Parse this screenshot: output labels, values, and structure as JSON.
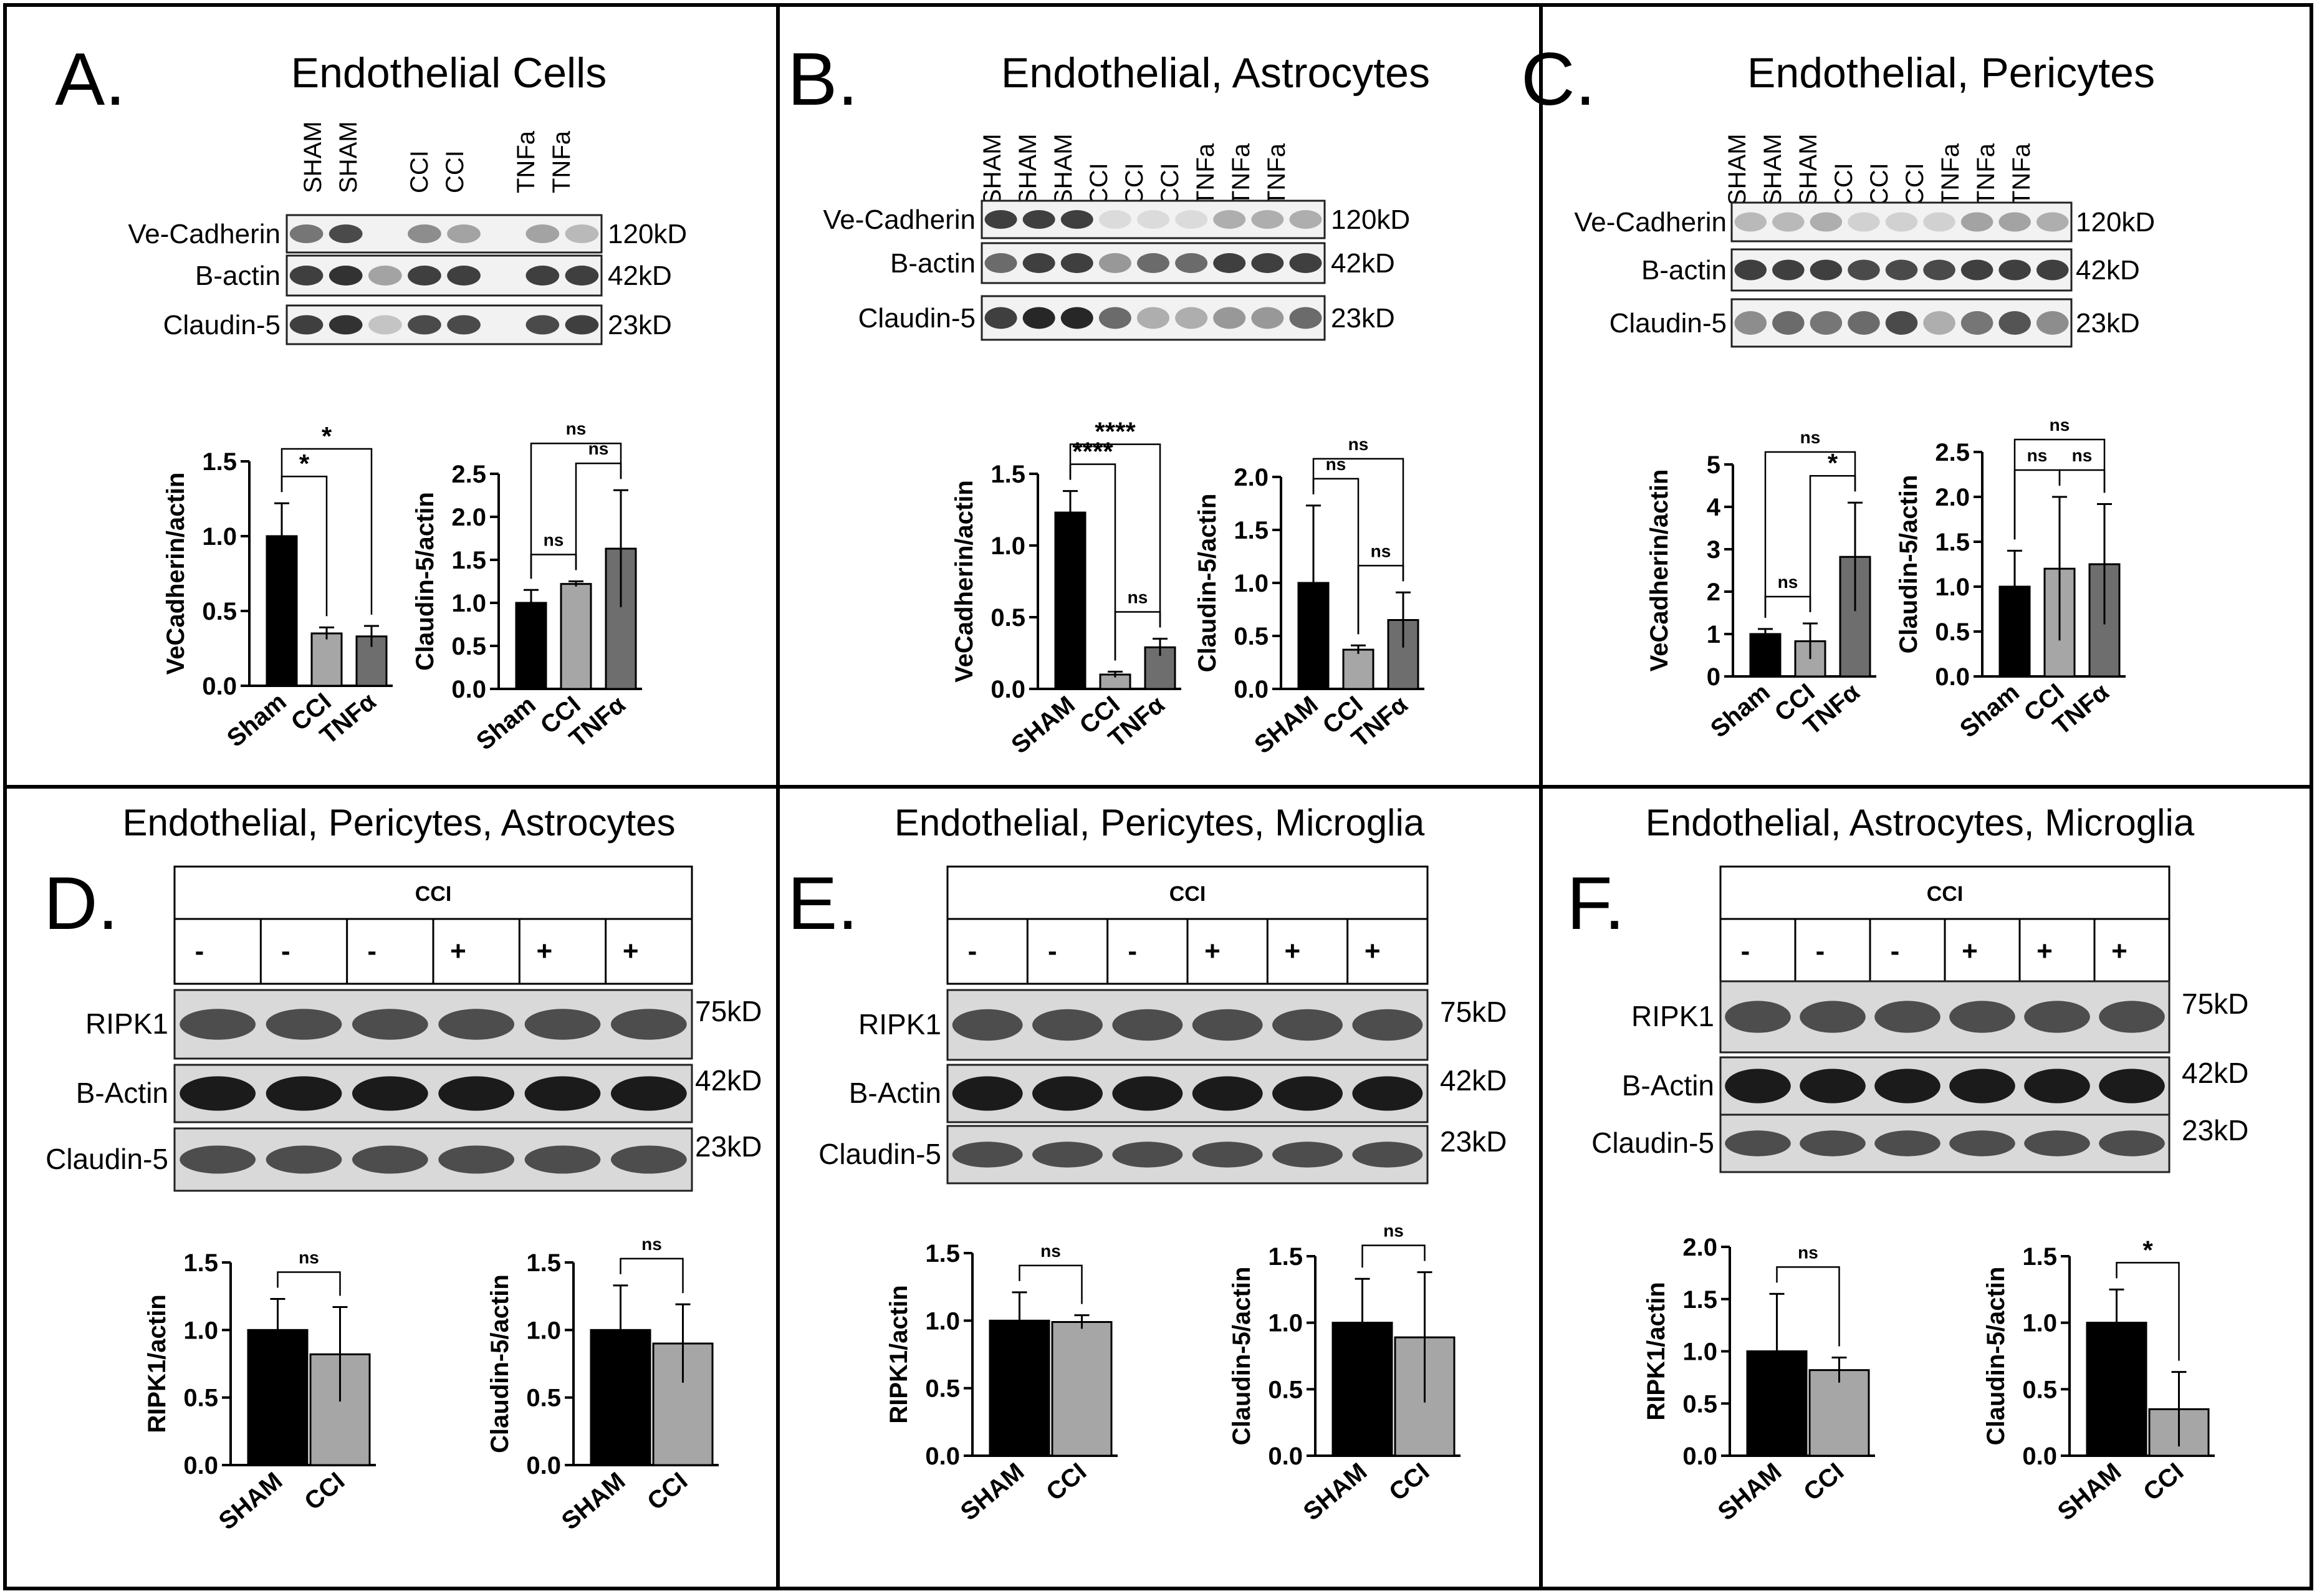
{
  "colors": {
    "sham": "#000000",
    "cci": "#a6a6a6",
    "tnf": "#6e6e6e",
    "panel_border": "#000000"
  },
  "panels": [
    {
      "letter": "A.",
      "title": "Endothelial Cells",
      "kind": "top",
      "lanes": [
        "SHAM",
        "SHAM",
        "",
        "CCI",
        "CCI",
        "",
        "TNFa",
        "TNFa"
      ],
      "bands": [
        {
          "label": "Ve-Cadherin",
          "size": "120kD"
        },
        {
          "label": "B-actin",
          "size": "42kD"
        },
        {
          "label": "Claudin-5",
          "size": "23kD"
        }
      ]
    },
    {
      "letter": "B.",
      "title": "Endothelial, Astrocytes",
      "kind": "top",
      "lanes": [
        "SHAM",
        "SHAM",
        "SHAM",
        "CCI",
        "CCI",
        "CCI",
        "TNFa",
        "TNFa",
        "TNFa"
      ],
      "bands": [
        {
          "label": "Ve-Cadherin",
          "size": "120kD"
        },
        {
          "label": "B-actin",
          "size": "42kD"
        },
        {
          "label": "Claudin-5",
          "size": "23kD"
        }
      ]
    },
    {
      "letter": "C.",
      "title": "Endothelial, Pericytes",
      "kind": "top",
      "lanes": [
        "SHAM",
        "SHAM",
        "SHAM",
        "CCI",
        "CCI",
        "CCI",
        "TNFa",
        "TNFa",
        "TNFa"
      ],
      "bands": [
        {
          "label": "Ve-Cadherin",
          "size": "120kD"
        },
        {
          "label": "B-actin",
          "size": "42kD"
        },
        {
          "label": "Claudin-5",
          "size": "23kD"
        }
      ]
    },
    {
      "letter": "D.",
      "title": "Endothelial, Pericytes, Astrocytes",
      "kind": "bottom",
      "treatment": "CCI",
      "signs": [
        "-",
        "-",
        "-",
        "+",
        "+",
        "+"
      ],
      "bands": [
        {
          "label": "RIPK1",
          "size": "75kD"
        },
        {
          "label": "B-Actin",
          "size": "42kD"
        },
        {
          "label": "Claudin-5",
          "size": "23kD"
        }
      ]
    },
    {
      "letter": "E.",
      "title": "Endothelial, Pericytes, Microglia",
      "kind": "bottom",
      "treatment": "CCI",
      "signs": [
        "-",
        "-",
        "-",
        "+",
        "+",
        "+"
      ],
      "bands": [
        {
          "label": "RIPK1",
          "size": "75kD"
        },
        {
          "label": "B-Actin",
          "size": "42kD"
        },
        {
          "label": "Claudin-5",
          "size": "23kD"
        }
      ]
    },
    {
      "letter": "F.",
      "title": "Endothelial, Astrocytes, Microglia",
      "kind": "bottom",
      "treatment": "CCI",
      "signs": [
        "-",
        "-",
        "-",
        "+",
        "+",
        "+"
      ],
      "bands": [
        {
          "label": "RIPK1",
          "size": "75kD"
        },
        {
          "label": "B-Actin",
          "size": "42kD"
        },
        {
          "label": "Claudin-5",
          "size": "23kD"
        }
      ]
    }
  ],
  "chart_data": [
    {
      "panel": "A",
      "type": "bar",
      "ylabel": "VeCadherin/actin",
      "categories": [
        "Sham",
        "CCI",
        "TNFα"
      ],
      "values": [
        1.0,
        0.35,
        0.33
      ],
      "errors": [
        0.22,
        0.04,
        0.07
      ],
      "ylim": [
        0,
        1.5
      ],
      "yticks": [
        "0.0",
        "0.5",
        "1.0",
        "1.5"
      ],
      "significance": [
        {
          "from": 0,
          "to": 2,
          "label": "*"
        },
        {
          "from": 0,
          "to": 1,
          "label": "*"
        }
      ]
    },
    {
      "panel": "A",
      "type": "bar",
      "ylabel": "Claudin-5/actin",
      "categories": [
        "Sham",
        "CCI",
        "TNFα"
      ],
      "values": [
        1.0,
        1.22,
        1.63
      ],
      "errors": [
        0.15,
        0.03,
        0.68
      ],
      "ylim": [
        0,
        2.5
      ],
      "yticks": [
        "0.0",
        "0.5",
        "1.0",
        "1.5",
        "2.0",
        "2.5"
      ],
      "significance": [
        {
          "from": 0,
          "to": 2,
          "label": "ns"
        },
        {
          "from": 0,
          "to": 1,
          "label": "ns"
        },
        {
          "from": 1,
          "to": 2,
          "label": "ns"
        }
      ]
    },
    {
      "panel": "B",
      "type": "bar",
      "ylabel": "VeCadherin/actin",
      "categories": [
        "SHAM",
        "CCI",
        "TNFα"
      ],
      "values": [
        1.23,
        0.1,
        0.29
      ],
      "errors": [
        0.15,
        0.02,
        0.06
      ],
      "ylim": [
        0,
        1.5
      ],
      "yticks": [
        "0.0",
        "0.5",
        "1.0",
        "1.5"
      ],
      "significance": [
        {
          "from": 0,
          "to": 2,
          "label": "****"
        },
        {
          "from": 1,
          "to": 2,
          "label": "ns"
        },
        {
          "from": 0,
          "to": 1,
          "label": "****"
        }
      ]
    },
    {
      "panel": "B",
      "type": "bar",
      "ylabel": "Claudin-5/actin",
      "categories": [
        "SHAM",
        "CCI",
        "TNFα"
      ],
      "values": [
        1.0,
        0.37,
        0.65
      ],
      "errors": [
        0.73,
        0.04,
        0.26
      ],
      "ylim": [
        0,
        2.0
      ],
      "yticks": [
        "0.0",
        "0.5",
        "1.0",
        "1.5",
        "2.0"
      ],
      "significance": [
        {
          "from": 0,
          "to": 2,
          "label": "ns"
        },
        {
          "from": 0,
          "to": 1,
          "label": "ns"
        },
        {
          "from": 1,
          "to": 2,
          "label": "ns"
        }
      ]
    },
    {
      "panel": "C",
      "type": "bar",
      "ylabel": "VeCadherin/actin",
      "categories": [
        "Sham",
        "CCI",
        "TNFα"
      ],
      "values": [
        1.0,
        0.83,
        2.82
      ],
      "errors": [
        0.12,
        0.42,
        1.28
      ],
      "ylim": [
        0,
        5
      ],
      "yticks": [
        "0",
        "1",
        "2",
        "3",
        "4",
        "5"
      ],
      "significance": [
        {
          "from": 0,
          "to": 2,
          "label": "ns"
        },
        {
          "from": 0,
          "to": 1,
          "label": "ns"
        },
        {
          "from": 1,
          "to": 2,
          "label": "*"
        }
      ]
    },
    {
      "panel": "C",
      "type": "bar",
      "ylabel": "Claudin-5/actin",
      "categories": [
        "Sham",
        "CCI",
        "TNFα"
      ],
      "values": [
        1.0,
        1.2,
        1.25
      ],
      "errors": [
        0.4,
        0.8,
        0.67
      ],
      "ylim": [
        0,
        2.5
      ],
      "yticks": [
        "0.0",
        "0.5",
        "1.0",
        "1.5",
        "2.0",
        "2.5"
      ],
      "significance": [
        {
          "from": 0,
          "to": 2,
          "label": "ns"
        },
        {
          "from": 0,
          "to": 1,
          "label": "ns"
        },
        {
          "from": 1,
          "to": 2,
          "label": "ns"
        }
      ]
    },
    {
      "panel": "D",
      "type": "bar",
      "ylabel": "RIPK1/actin",
      "categories": [
        "SHAM",
        "CCI"
      ],
      "values": [
        1.0,
        0.82
      ],
      "errors": [
        0.23,
        0.35
      ],
      "ylim": [
        0,
        1.5
      ],
      "yticks": [
        "0.0",
        "0.5",
        "1.0",
        "1.5"
      ],
      "significance": [
        {
          "from": 0,
          "to": 1,
          "label": "ns"
        }
      ]
    },
    {
      "panel": "D",
      "type": "bar",
      "ylabel": "Claudin-5/actin",
      "categories": [
        "SHAM",
        "CCI"
      ],
      "values": [
        1.0,
        0.9
      ],
      "errors": [
        0.33,
        0.29
      ],
      "ylim": [
        0,
        1.5
      ],
      "yticks": [
        "0.0",
        "0.5",
        "1.0",
        "1.5"
      ],
      "significance": [
        {
          "from": 0,
          "to": 1,
          "label": "ns"
        }
      ]
    },
    {
      "panel": "E",
      "type": "bar",
      "ylabel": "RIPK1/actin",
      "categories": [
        "SHAM",
        "CCI"
      ],
      "values": [
        1.0,
        0.99
      ],
      "errors": [
        0.21,
        0.05
      ],
      "ylim": [
        0,
        1.5
      ],
      "yticks": [
        "0.0",
        "0.5",
        "1.0",
        "1.5"
      ],
      "significance": [
        {
          "from": 0,
          "to": 1,
          "label": "ns"
        }
      ]
    },
    {
      "panel": "E",
      "type": "bar",
      "ylabel": "Claudin-5/actin",
      "categories": [
        "SHAM",
        "CCI"
      ],
      "values": [
        1.0,
        0.89
      ],
      "errors": [
        0.33,
        0.49
      ],
      "ylim": [
        0,
        1.5
      ],
      "yticks": [
        "0.0",
        "0.5",
        "1.0",
        "1.5"
      ],
      "significance": [
        {
          "from": 0,
          "to": 1,
          "label": "ns"
        }
      ]
    },
    {
      "panel": "F",
      "type": "bar",
      "ylabel": "RIPK1/actin",
      "categories": [
        "SHAM",
        "CCI"
      ],
      "values": [
        1.0,
        0.82
      ],
      "errors": [
        0.55,
        0.12
      ],
      "ylim": [
        0,
        2.0
      ],
      "yticks": [
        "0.0",
        "0.5",
        "1.0",
        "1.5",
        "2.0"
      ],
      "significance": [
        {
          "from": 0,
          "to": 1,
          "label": "ns"
        }
      ]
    },
    {
      "panel": "F",
      "type": "bar",
      "ylabel": "Claudin-5/actin",
      "categories": [
        "SHAM",
        "CCI"
      ],
      "values": [
        1.0,
        0.35
      ],
      "errors": [
        0.25,
        0.28
      ],
      "ylim": [
        0,
        1.5
      ],
      "yticks": [
        "0.0",
        "0.5",
        "1.0",
        "1.5"
      ],
      "significance": [
        {
          "from": 0,
          "to": 1,
          "label": "*"
        }
      ]
    }
  ]
}
